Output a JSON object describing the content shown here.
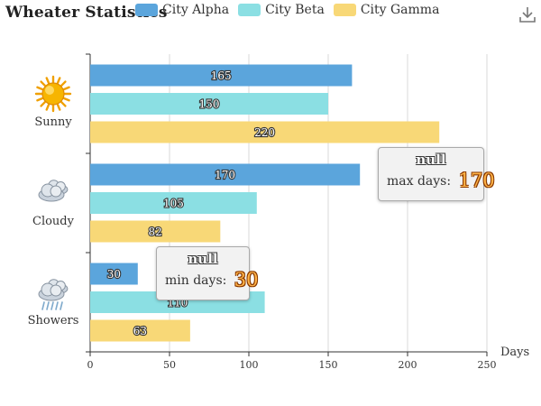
{
  "title": "Wheater Statistics",
  "legend": [
    {
      "name": "City Alpha",
      "color": "#5ba5dc"
    },
    {
      "name": "City Beta",
      "color": "#8bdfe3"
    },
    {
      "name": "City Gamma",
      "color": "#f8d877"
    }
  ],
  "toolbar": {
    "download_icon": "download-icon"
  },
  "chart_data": {
    "type": "bar",
    "orientation": "horizontal",
    "categories": [
      "Sunny",
      "Cloudy",
      "Showers"
    ],
    "category_icons": [
      "sun-icon",
      "cloud-icon",
      "showers-icon"
    ],
    "series": [
      {
        "name": "City Alpha",
        "values": [
          165,
          170,
          30
        ]
      },
      {
        "name": "City Beta",
        "values": [
          150,
          105,
          110
        ]
      },
      {
        "name": "City Gamma",
        "values": [
          220,
          82,
          63
        ]
      }
    ],
    "x_axis_name": "Days",
    "x_ticks": [
      0,
      50,
      100,
      150,
      200,
      250
    ],
    "xlim": [
      0,
      250
    ],
    "grid": "vertical",
    "legend_position": "top"
  },
  "tooltips": [
    {
      "title": "null",
      "label": "max days:",
      "value": "170"
    },
    {
      "title": "null",
      "label": "min days:",
      "value": "30"
    }
  ]
}
